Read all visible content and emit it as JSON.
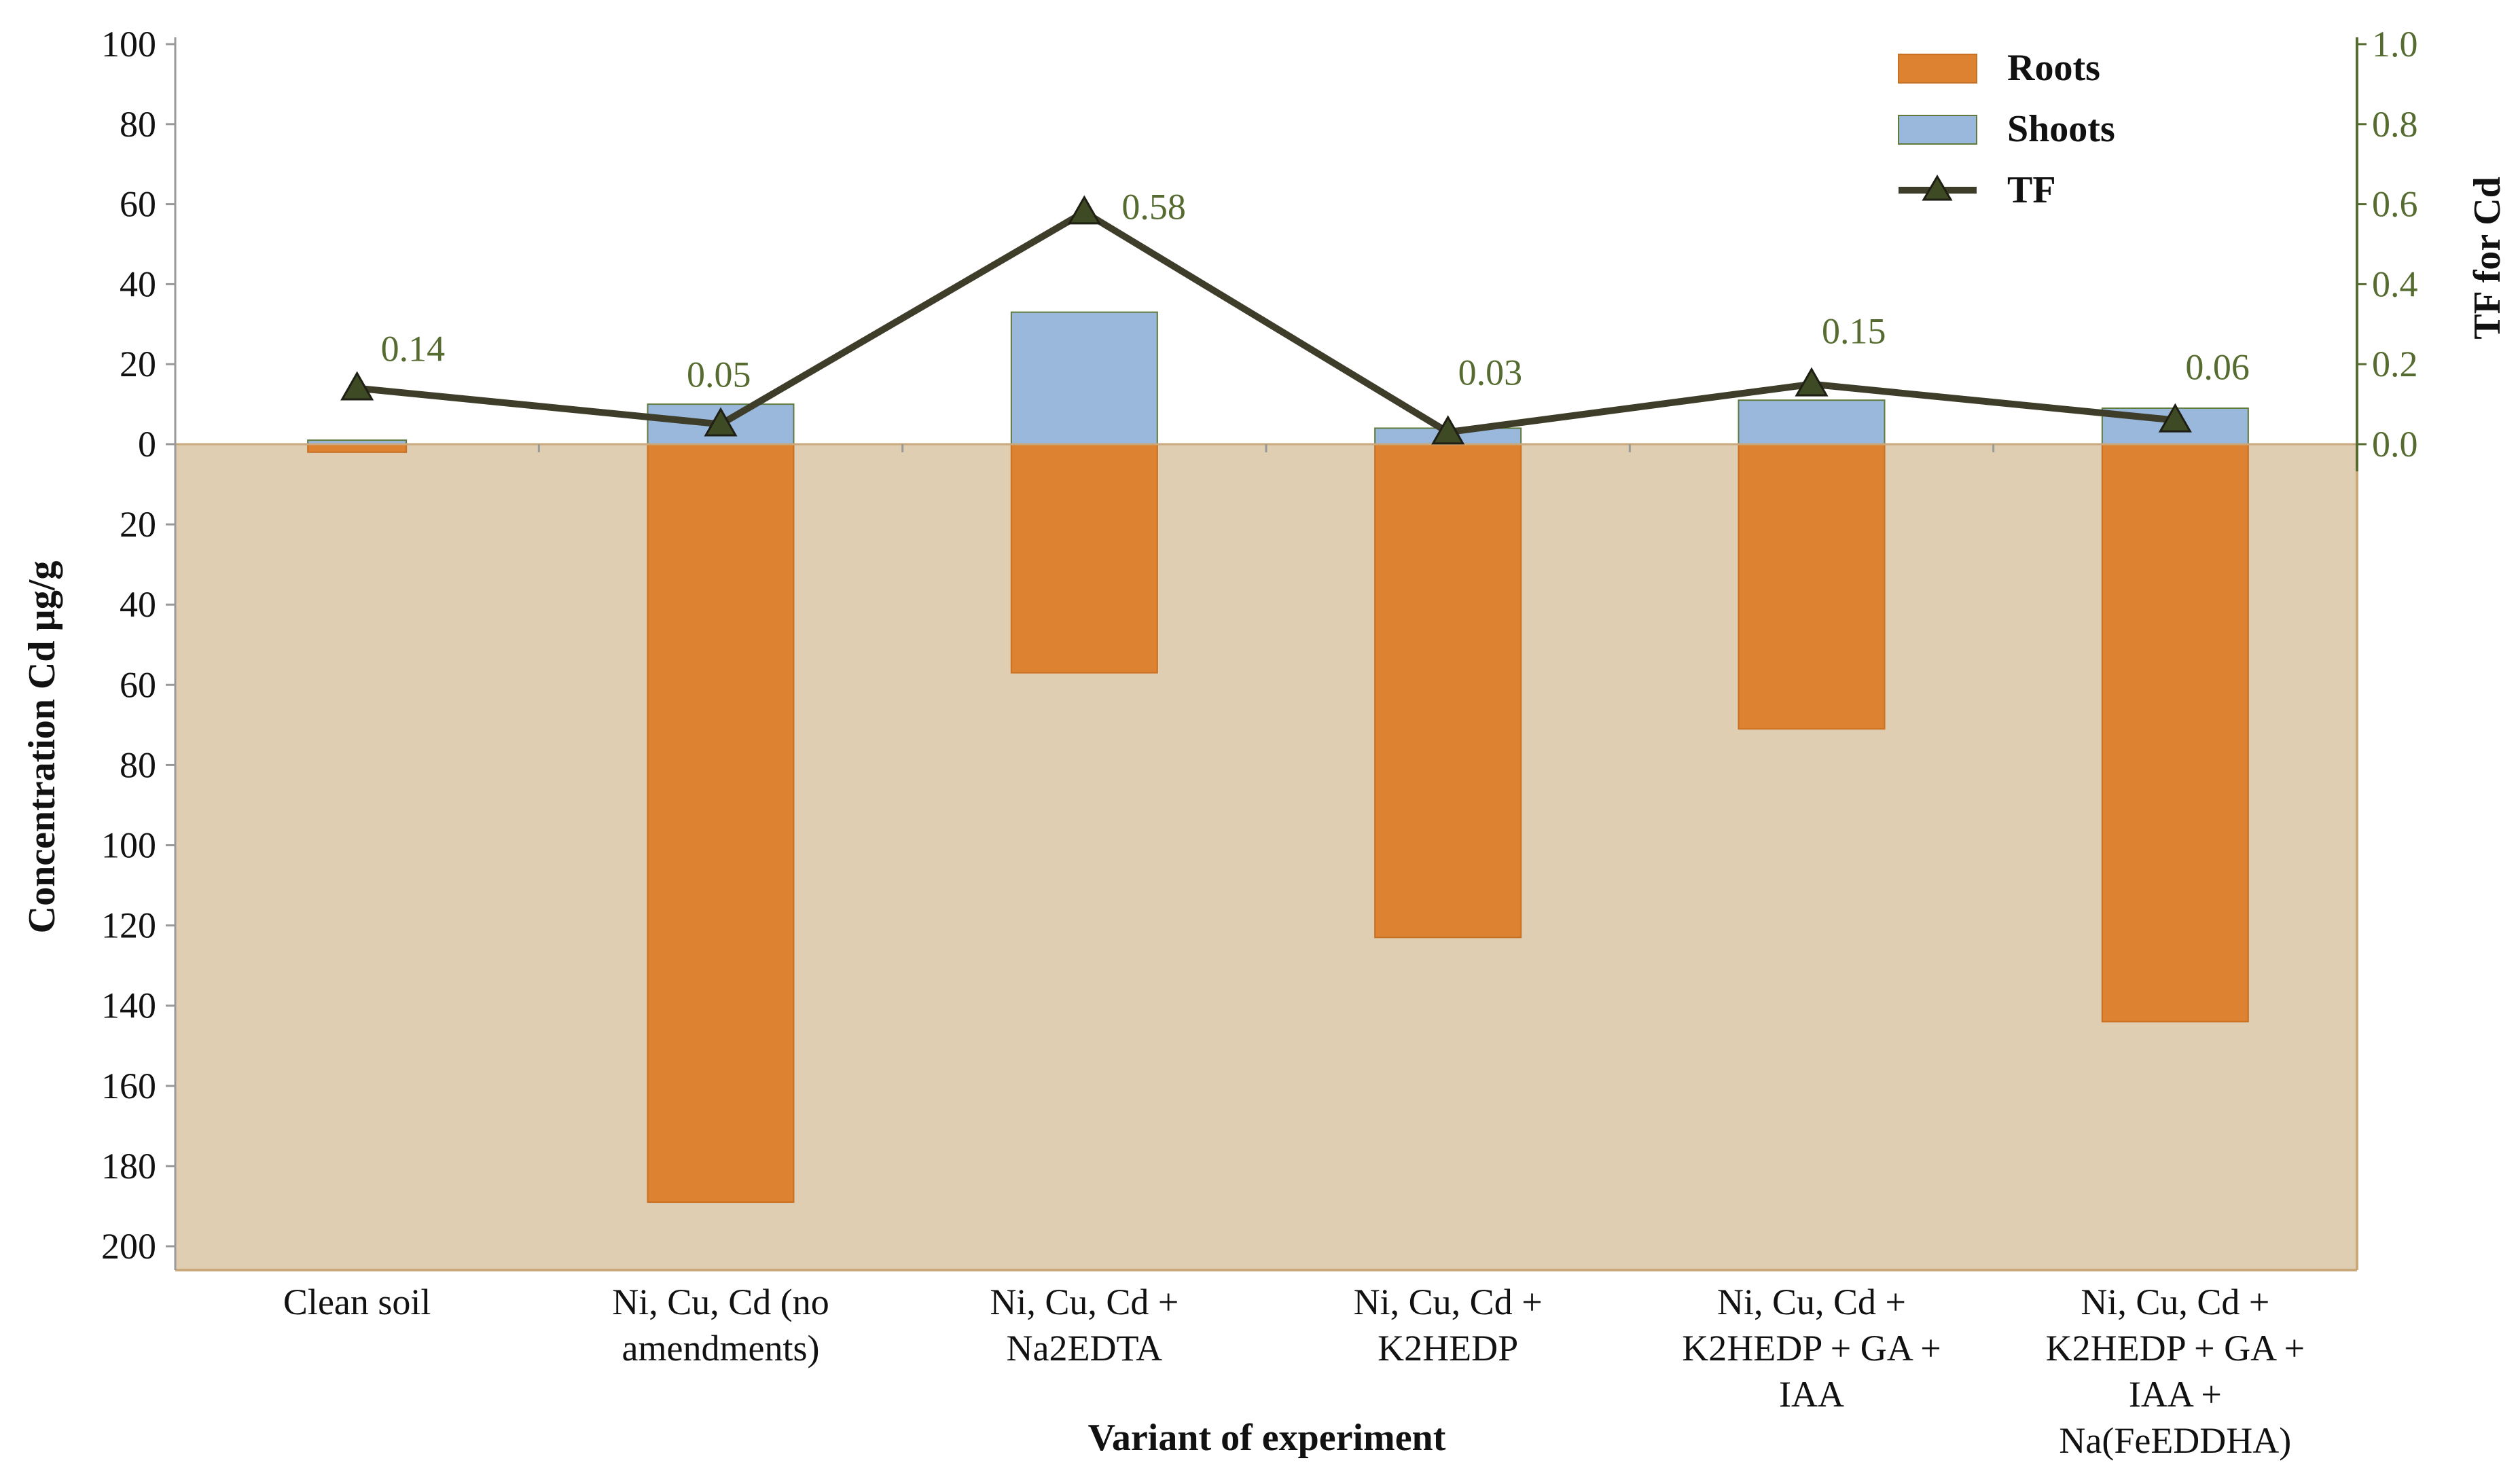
{
  "chart_data": {
    "type": "bar",
    "xlabel": "Variant of experiment",
    "ylabel": "Concentration Cd  µg/g",
    "y2label": "TF for Cd",
    "categories": [
      [
        "Clean soil"
      ],
      [
        "Ni, Cu, Cd (no",
        "amendments)"
      ],
      [
        "Ni, Cu, Cd +",
        "Na2EDTA"
      ],
      [
        "Ni, Cu, Cd +",
        "K2HEDP"
      ],
      [
        "Ni, Cu, Cd +",
        "K2HEDP + GA +",
        "IAA"
      ],
      [
        "Ni, Cu, Cd +",
        "K2HEDP + GA +",
        "IAA +",
        "Na(FeEDDHA)"
      ]
    ],
    "series": [
      {
        "name": "Roots",
        "axis": "left",
        "direction": "down",
        "values": [
          2,
          189,
          57,
          123,
          71,
          144
        ],
        "color": "#dd8231"
      },
      {
        "name": "Shoots",
        "axis": "left",
        "direction": "up",
        "values": [
          1,
          10,
          33,
          4,
          11,
          9
        ],
        "color": "#9ab7dc"
      },
      {
        "name": "TF",
        "axis": "right",
        "type": "line",
        "values": [
          0.14,
          0.05,
          0.58,
          0.03,
          0.15,
          0.06
        ],
        "labels": [
          "0.14",
          "0.05",
          "0.58",
          "0.03",
          "0.15",
          "0.06"
        ],
        "color": "#3d3d29"
      }
    ],
    "yticks_up": [
      "100",
      "80",
      "60",
      "40",
      "20",
      "0"
    ],
    "yticks_down": [
      "20",
      "40",
      "60",
      "80",
      "100",
      "120",
      "140",
      "160",
      "180",
      "200"
    ],
    "y2ticks": [
      "1.0",
      "0.8",
      "0.6",
      "0.4",
      "0.2",
      "0.0"
    ],
    "ylim_up": [
      0,
      100
    ],
    "ylim_down": [
      0,
      200
    ],
    "y2lim": [
      0,
      1.0
    ],
    "legend": {
      "position": "top-right",
      "entries": [
        "Roots",
        "Shoots",
        "TF"
      ]
    },
    "colors": {
      "background_below_zero": "#e0ceb2",
      "axis_right": "#556b2f",
      "frame": "#c9a87c"
    }
  }
}
